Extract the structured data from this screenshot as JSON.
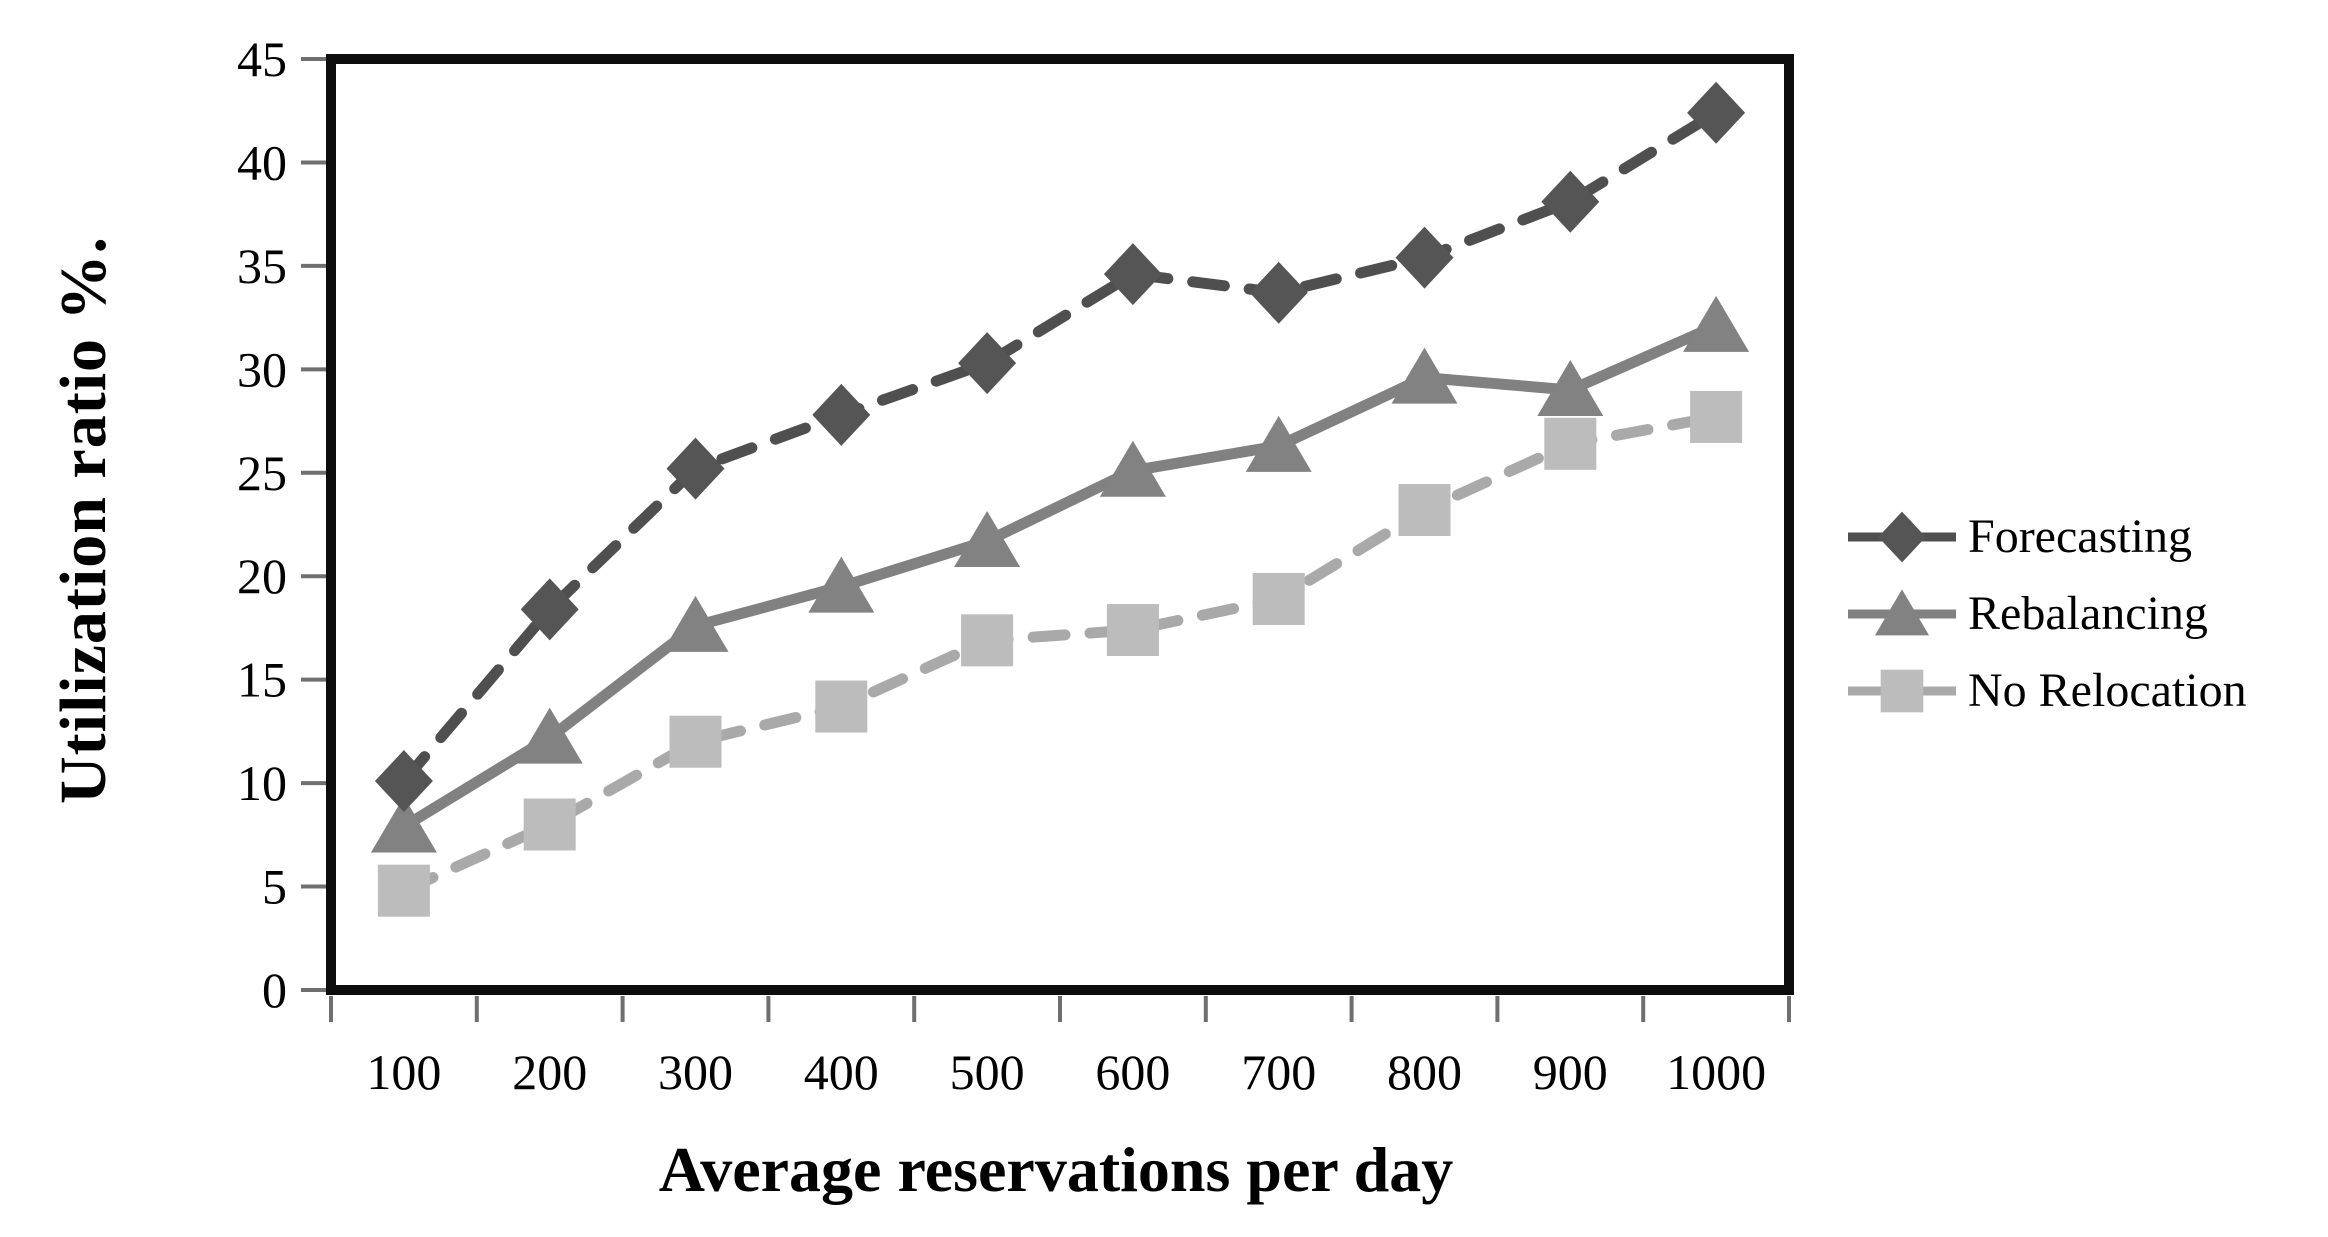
{
  "figure": {
    "background_color": "#ffffff",
    "frame_color": "#0d0d0d",
    "tick_color": "#6f6f6f",
    "text_color": "#000000"
  },
  "chart_data": {
    "type": "line",
    "title": "",
    "xlabel": "Average reservations per day",
    "ylabel": "Utilization ratio %.",
    "categories": [
      100,
      200,
      300,
      400,
      500,
      600,
      700,
      800,
      900,
      1000
    ],
    "y_ticks": [
      0,
      5,
      10,
      15,
      20,
      25,
      30,
      35,
      40,
      45
    ],
    "ylim": [
      0,
      45
    ],
    "grid": false,
    "legend_position": "right-center",
    "series": [
      {
        "name": "Forecasting",
        "values": [
          10.1,
          18.4,
          25.2,
          27.8,
          30.3,
          34.6,
          33.7,
          35.4,
          38.1,
          42.4
        ],
        "line_color": "#4f4f4f",
        "marker_color": "#555555",
        "marker": "diamond",
        "line_style": "dashed"
      },
      {
        "name": "Rebalancing",
        "values": [
          7.9,
          12.2,
          17.6,
          19.5,
          21.7,
          25.1,
          26.3,
          29.6,
          29.0,
          32.1
        ],
        "line_color": "#818181",
        "marker_color": "#828282",
        "marker": "triangle",
        "line_style": "solid"
      },
      {
        "name": "No Relocation",
        "values": [
          4.8,
          8.0,
          12.0,
          13.7,
          16.9,
          17.4,
          18.9,
          23.2,
          26.4,
          27.7
        ],
        "line_color": "#a9a9a9",
        "marker_color": "#bcbcbc",
        "marker": "square",
        "line_style": "dashed"
      }
    ]
  }
}
